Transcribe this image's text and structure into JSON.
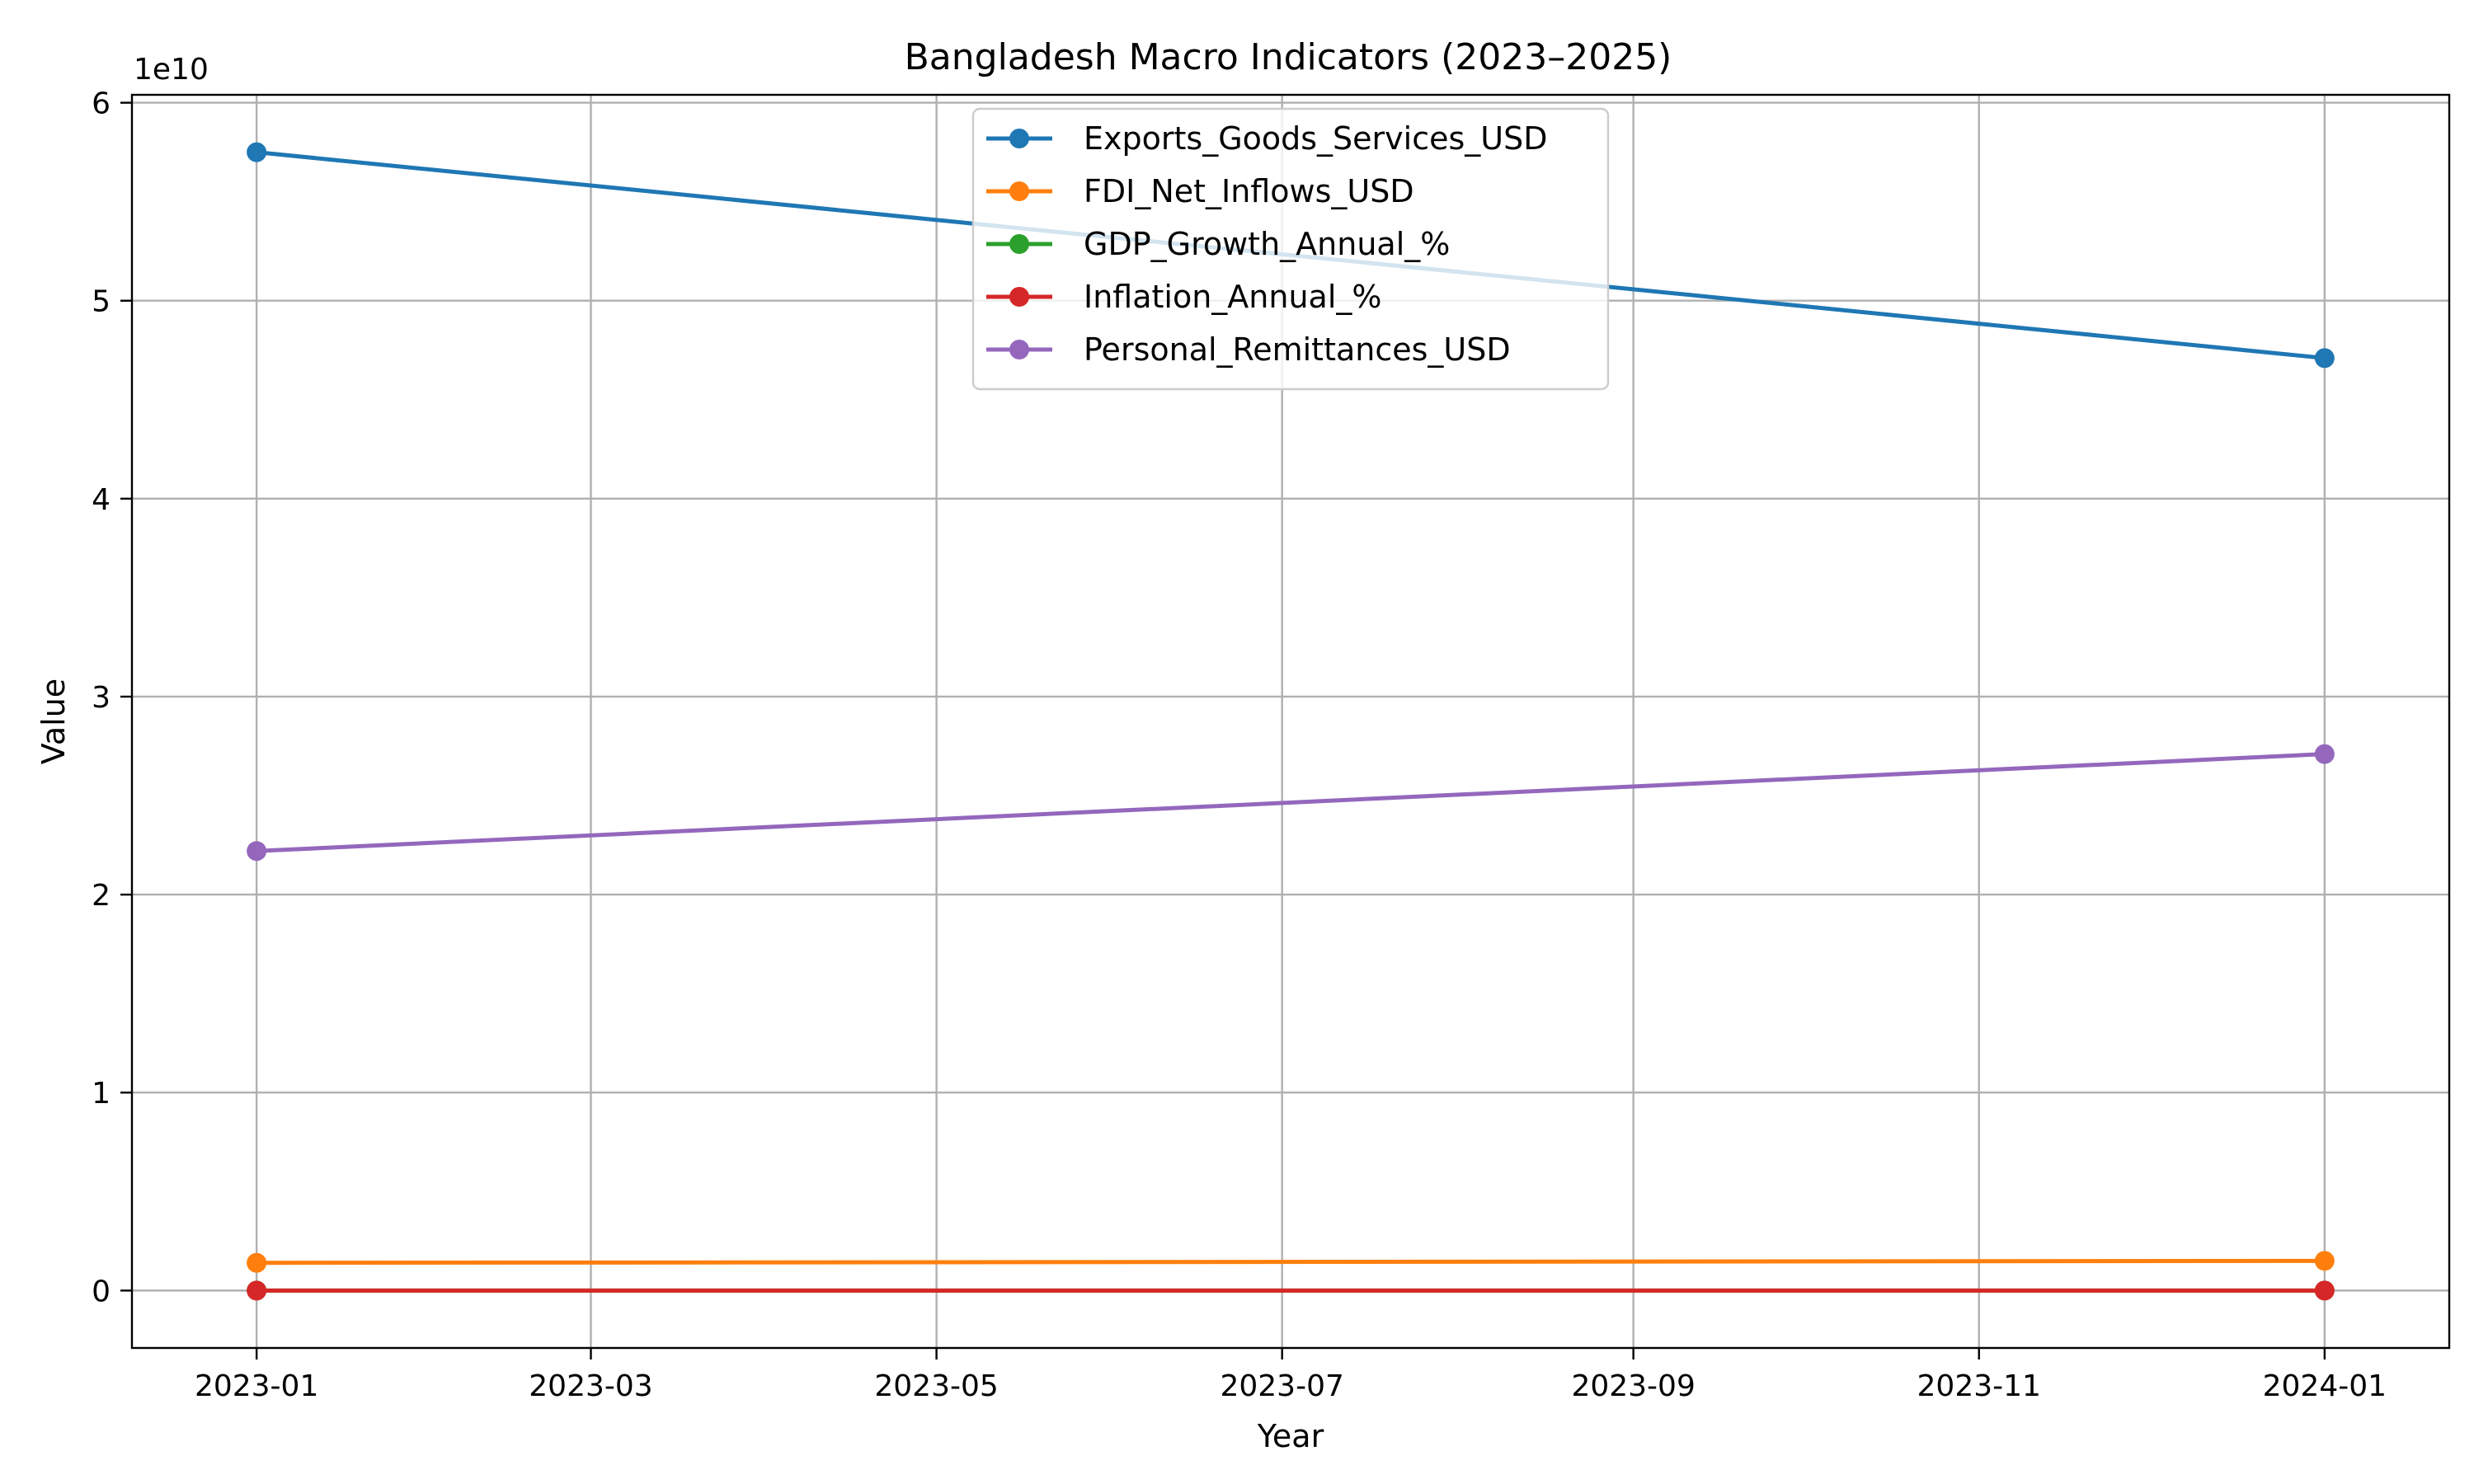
{
  "chart_data": {
    "type": "line",
    "title": "Bangladesh Macro Indicators (2023–2025)",
    "xlabel": "Year",
    "ylabel": "Value",
    "y_offset_label": "1e10",
    "y_scale": 10000000000,
    "x": [
      "2023-01-01",
      "2024-01-01"
    ],
    "xlim": [
      "2022-12-10",
      "2024-01-23"
    ],
    "ylim": [
      -2900000000,
      60400000000
    ],
    "x_ticks": [
      "2023-01",
      "2023-03",
      "2023-05",
      "2023-07",
      "2023-09",
      "2023-11",
      "2024-01"
    ],
    "x_tick_dates": [
      "2023-01-01",
      "2023-03-01",
      "2023-05-01",
      "2023-07-01",
      "2023-09-01",
      "2023-11-01",
      "2024-01-01"
    ],
    "y_ticks": [
      0,
      1,
      2,
      3,
      4,
      5,
      6
    ],
    "grid": true,
    "legend_position": "top-center",
    "series": [
      {
        "name": "Exports_Goods_Services_USD",
        "color": "#1f77b4",
        "values": [
          57500000000,
          47100000000
        ]
      },
      {
        "name": "FDI_Net_Inflows_USD",
        "color": "#ff7f0e",
        "values": [
          1400000000,
          1500000000
        ]
      },
      {
        "name": "GDP_Growth_Annual_%",
        "color": "#2ca02c",
        "values": [
          5.8,
          4.2
        ]
      },
      {
        "name": "Inflation_Annual_%",
        "color": "#d62728",
        "values": [
          9.9,
          10.4
        ]
      },
      {
        "name": "Personal_Remittances_USD",
        "color": "#9467bd",
        "values": [
          22200000000,
          27100000000
        ]
      }
    ]
  }
}
